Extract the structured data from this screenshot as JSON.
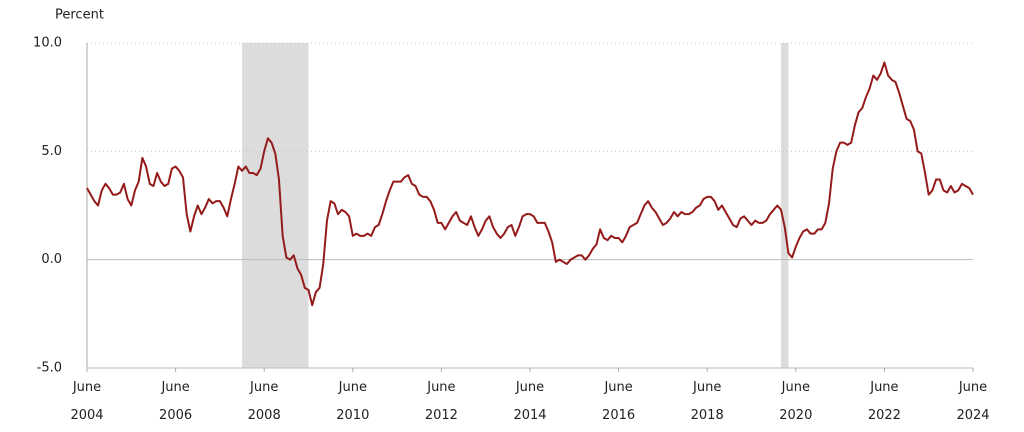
{
  "chart_data": {
    "type": "line",
    "y_axis_label": "Percent",
    "categories": [
      "June 2004",
      null,
      null,
      null,
      null,
      null,
      null,
      null,
      null,
      null,
      null,
      null,
      null,
      null,
      null,
      null,
      null,
      null,
      null,
      null,
      null,
      null,
      null,
      null,
      "June 2006",
      null,
      null,
      null,
      null,
      null,
      null,
      null,
      null,
      null,
      null,
      null,
      null,
      null,
      null,
      null,
      null,
      null,
      null,
      null,
      null,
      null,
      null,
      null,
      "June 2008",
      null,
      null,
      null,
      null,
      null,
      null,
      null,
      null,
      null,
      null,
      null,
      null,
      null,
      null,
      null,
      null,
      null,
      null,
      null,
      null,
      null,
      null,
      null,
      "June 2010",
      null,
      null,
      null,
      null,
      null,
      null,
      null,
      null,
      null,
      null,
      null,
      null,
      null,
      null,
      null,
      null,
      null,
      null,
      null,
      null,
      null,
      null,
      null,
      "June 2012",
      null,
      null,
      null,
      null,
      null,
      null,
      null,
      null,
      null,
      null,
      null,
      null,
      null,
      null,
      null,
      null,
      null,
      null,
      null,
      null,
      null,
      null,
      null,
      "June 2014",
      null,
      null,
      null,
      null,
      null,
      null,
      null,
      null,
      null,
      null,
      null,
      null,
      null,
      null,
      null,
      null,
      null,
      null,
      null,
      null,
      null,
      null,
      null,
      "June 2016",
      null,
      null,
      null,
      null,
      null,
      null,
      null,
      null,
      null,
      null,
      null,
      null,
      null,
      null,
      null,
      null,
      null,
      null,
      null,
      null,
      null,
      null,
      null,
      "June 2018",
      null,
      null,
      null,
      null,
      null,
      null,
      null,
      null,
      null,
      null,
      null,
      null,
      null,
      null,
      null,
      null,
      null,
      null,
      null,
      null,
      null,
      null,
      null,
      "June 2020",
      null,
      null,
      null,
      null,
      null,
      null,
      null,
      null,
      null,
      null,
      null,
      null,
      null,
      null,
      null,
      null,
      null,
      null,
      null,
      null,
      null,
      null,
      null,
      "June 2022",
      null,
      null,
      null,
      null,
      null,
      null,
      null,
      null,
      null,
      null,
      null,
      null,
      null,
      null,
      null,
      null,
      null,
      null,
      null,
      null,
      null,
      null,
      null,
      "June 2024"
    ],
    "series": [
      {
        "color": "#951b1b",
        "values": [
          3.3,
          3.0,
          2.7,
          2.5,
          3.2,
          3.5,
          3.3,
          3.0,
          3.0,
          3.1,
          3.5,
          2.8,
          2.5,
          3.2,
          3.6,
          4.7,
          4.3,
          3.5,
          3.4,
          4.0,
          3.6,
          3.4,
          3.5,
          4.2,
          4.3,
          4.1,
          3.8,
          2.1,
          1.3,
          2.0,
          2.5,
          2.1,
          2.4,
          2.8,
          2.6,
          2.7,
          2.7,
          2.4,
          2.0,
          2.8,
          3.5,
          4.3,
          4.1,
          4.3,
          4.0,
          4.0,
          3.9,
          4.2,
          5.0,
          5.6,
          5.4,
          4.9,
          3.7,
          1.1,
          0.1,
          0.0,
          0.2,
          -0.4,
          -0.7,
          -1.3,
          -1.4,
          -2.1,
          -1.5,
          -1.3,
          -0.2,
          1.8,
          2.7,
          2.6,
          2.1,
          2.3,
          2.2,
          2.0,
          1.1,
          1.2,
          1.1,
          1.1,
          1.2,
          1.1,
          1.5,
          1.6,
          2.1,
          2.7,
          3.2,
          3.6,
          3.6,
          3.6,
          3.8,
          3.9,
          3.5,
          3.4,
          3.0,
          2.9,
          2.9,
          2.7,
          2.3,
          1.7,
          1.7,
          1.4,
          1.7,
          2.0,
          2.2,
          1.8,
          1.7,
          1.6,
          2.0,
          1.5,
          1.1,
          1.4,
          1.8,
          2.0,
          1.5,
          1.2,
          1.0,
          1.2,
          1.5,
          1.6,
          1.1,
          1.5,
          2.0,
          2.1,
          2.1,
          2.0,
          1.7,
          1.7,
          1.7,
          1.3,
          0.8,
          -0.1,
          0.0,
          -0.1,
          -0.2,
          0.0,
          0.1,
          0.2,
          0.2,
          0.0,
          0.2,
          0.5,
          0.7,
          1.4,
          1.0,
          0.9,
          1.1,
          1.0,
          1.0,
          0.8,
          1.1,
          1.5,
          1.6,
          1.7,
          2.1,
          2.5,
          2.7,
          2.4,
          2.2,
          1.9,
          1.6,
          1.7,
          1.9,
          2.2,
          2.0,
          2.2,
          2.1,
          2.1,
          2.2,
          2.4,
          2.5,
          2.8,
          2.9,
          2.9,
          2.7,
          2.3,
          2.5,
          2.2,
          1.9,
          1.6,
          1.5,
          1.9,
          2.0,
          1.8,
          1.6,
          1.8,
          1.7,
          1.7,
          1.8,
          2.1,
          2.3,
          2.5,
          2.3,
          1.5,
          0.3,
          0.1,
          0.6,
          1.0,
          1.3,
          1.4,
          1.2,
          1.2,
          1.4,
          1.4,
          1.7,
          2.6,
          4.2,
          5.0,
          5.4,
          5.4,
          5.3,
          5.4,
          6.2,
          6.8,
          7.0,
          7.5,
          7.9,
          8.5,
          8.3,
          8.6,
          9.1,
          8.5,
          8.3,
          8.2,
          7.7,
          7.1,
          6.5,
          6.4,
          6.0,
          5.0,
          4.9,
          4.0,
          3.0,
          3.2,
          3.7,
          3.7,
          3.2,
          3.1,
          3.4,
          3.1,
          3.2,
          3.5,
          3.4,
          3.3,
          3.0
        ]
      }
    ],
    "recessions": [
      [
        42,
        60
      ],
      [
        188,
        190
      ]
    ],
    "recession_color": "#dcdcdc",
    "ylim": [
      -5,
      10
    ],
    "yticks": [
      {
        "value": 10,
        "label": "10.0"
      },
      {
        "value": 5,
        "label": "5.0"
      },
      {
        "value": 0,
        "label": "0.0"
      },
      {
        "value": -5,
        "label": "-5.0"
      }
    ],
    "grid": true
  }
}
